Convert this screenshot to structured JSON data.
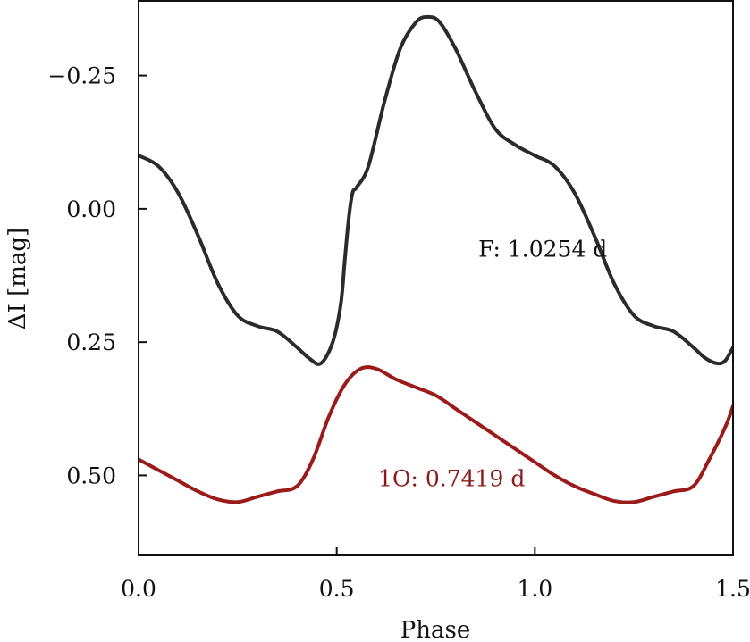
{
  "chart_data": {
    "type": "line",
    "xlabel": "Phase",
    "ylabel": "ΔI [mag]",
    "xlim": [
      0.0,
      1.5
    ],
    "ylim": [
      0.65,
      -0.39
    ],
    "y_inverted": true,
    "grid": false,
    "x_ticks": [
      0.0,
      0.5,
      1.0,
      1.5
    ],
    "x_tick_labels": [
      "0.0",
      "0.5",
      "1.0",
      "1.5"
    ],
    "y_ticks": [
      -0.25,
      0.0,
      0.25,
      0.5
    ],
    "y_tick_labels": [
      "−0.25",
      "0.00",
      "0.25",
      "0.50"
    ],
    "series": [
      {
        "name": "F: 1.0254 d",
        "color": "#2b2a2c",
        "x": [
          0.0,
          0.05,
          0.1,
          0.15,
          0.2,
          0.25,
          0.3,
          0.35,
          0.4,
          0.43,
          0.46,
          0.49,
          0.51,
          0.52,
          0.53,
          0.54,
          0.55,
          0.58,
          0.62,
          0.66,
          0.7,
          0.73,
          0.76,
          0.8,
          0.85,
          0.9,
          0.95,
          1.0,
          1.05,
          1.1,
          1.15,
          1.2,
          1.25,
          1.3,
          1.35,
          1.4,
          1.43,
          1.46,
          1.48,
          1.5
        ],
        "y": [
          -0.1,
          -0.08,
          -0.03,
          0.05,
          0.14,
          0.2,
          0.22,
          0.23,
          0.26,
          0.28,
          0.29,
          0.25,
          0.18,
          0.1,
          0.02,
          -0.03,
          -0.04,
          -0.08,
          -0.2,
          -0.3,
          -0.35,
          -0.36,
          -0.35,
          -0.3,
          -0.22,
          -0.15,
          -0.12,
          -0.1,
          -0.08,
          -0.03,
          0.05,
          0.14,
          0.2,
          0.22,
          0.23,
          0.26,
          0.28,
          0.29,
          0.285,
          0.26
        ]
      },
      {
        "name": "1O: 0.7419 d",
        "color": "#9b1b1b",
        "x": [
          0.0,
          0.05,
          0.1,
          0.15,
          0.2,
          0.25,
          0.3,
          0.35,
          0.4,
          0.44,
          0.48,
          0.52,
          0.56,
          0.6,
          0.65,
          0.7,
          0.75,
          0.8,
          0.85,
          0.9,
          0.95,
          1.0,
          1.05,
          1.1,
          1.15,
          1.2,
          1.25,
          1.3,
          1.35,
          1.4,
          1.44,
          1.48,
          1.5
        ],
        "y": [
          0.47,
          0.49,
          0.51,
          0.53,
          0.545,
          0.55,
          0.54,
          0.53,
          0.52,
          0.47,
          0.39,
          0.33,
          0.3,
          0.3,
          0.32,
          0.335,
          0.35,
          0.375,
          0.4,
          0.425,
          0.45,
          0.475,
          0.5,
          0.52,
          0.535,
          0.548,
          0.55,
          0.54,
          0.53,
          0.52,
          0.47,
          0.41,
          0.37
        ]
      }
    ],
    "annotations": [
      {
        "text": "F: 1.0254 d",
        "x": 1.02,
        "y": 0.09,
        "color": "#111111"
      },
      {
        "text": "1O: 0.7419 d",
        "x": 0.79,
        "y": 0.52,
        "color": "#8b1a1a"
      }
    ]
  }
}
